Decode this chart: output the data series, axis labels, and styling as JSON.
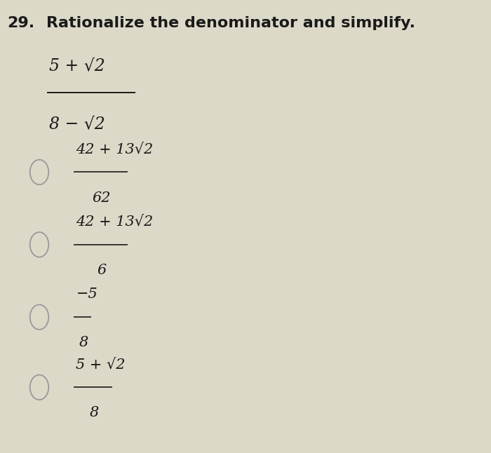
{
  "background_color": "#ddd9c8",
  "text_color": "#1a1a1a",
  "fraction_color": "#1a1a1a",
  "circle_color": "#999999",
  "question_number": "29.",
  "question_text": "Rationalize the denominator and simplify.",
  "question_fontsize": 16,
  "main_numerator": "5 + √2",
  "main_denominator": "8 − √2",
  "options": [
    {
      "numerator": "42 + 13√2",
      "denominator": "62"
    },
    {
      "numerator": "42 + 13√2",
      "denominator": "6"
    },
    {
      "numerator": "−5",
      "denominator": "8"
    },
    {
      "numerator": "5 + √2",
      "denominator": "8"
    }
  ]
}
